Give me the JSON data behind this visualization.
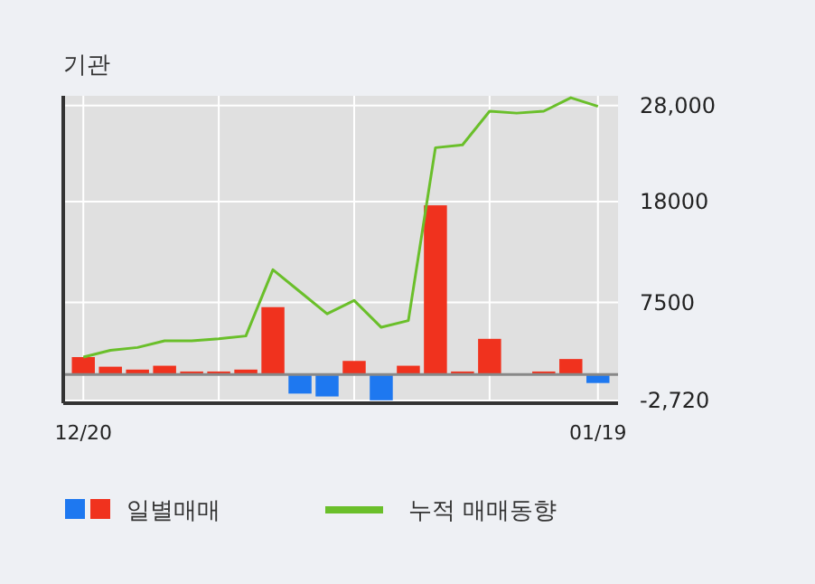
{
  "chart_data": {
    "type": "bar",
    "title": "기관",
    "categories": [
      "12/20",
      null,
      null,
      null,
      null,
      null,
      null,
      null,
      null,
      null,
      null,
      null,
      null,
      null,
      null,
      null,
      null,
      null,
      null,
      "01/19"
    ],
    "series": [
      {
        "name": "일별매매",
        "color": "#f0321e",
        "colors": [
          "#f0321e",
          "#f0321e",
          "#f0321e",
          "#f0321e",
          "#f0321e",
          "#f0321e",
          "#f0321e",
          "#f0321e",
          "#1e78f0",
          "#1e78f0",
          "#f0321e",
          "#1e78f0",
          "#f0321e",
          "#f0321e",
          "#f0321e",
          "#f0321e",
          "#f0321e",
          "#f0321e",
          "#f0321e",
          "#1e78f0"
        ],
        "values": [
          1800,
          800,
          500,
          900,
          300,
          300,
          500,
          7000,
          -2000,
          -2300,
          1400,
          -2700,
          900,
          17600,
          300,
          3700,
          0,
          300,
          1600,
          -900
        ]
      },
      {
        "name": "누적 매매동향",
        "type": "line",
        "color": "#6abf2a",
        "values": [
          1800,
          2500,
          2800,
          3500,
          3500,
          3700,
          4000,
          10900,
          8600,
          6300,
          7700,
          4900,
          5600,
          23600,
          23900,
          27400,
          27200,
          27400,
          28800,
          27900
        ]
      }
    ],
    "ylim": [
      -3000,
      29000
    ],
    "yticks": [
      {
        "value": 28000,
        "label": "28,000"
      },
      18000,
      7500,
      {
        "value": -2720,
        "label": "-2,720"
      }
    ],
    "grid": true,
    "legend": "bottom",
    "marker": "none"
  }
}
